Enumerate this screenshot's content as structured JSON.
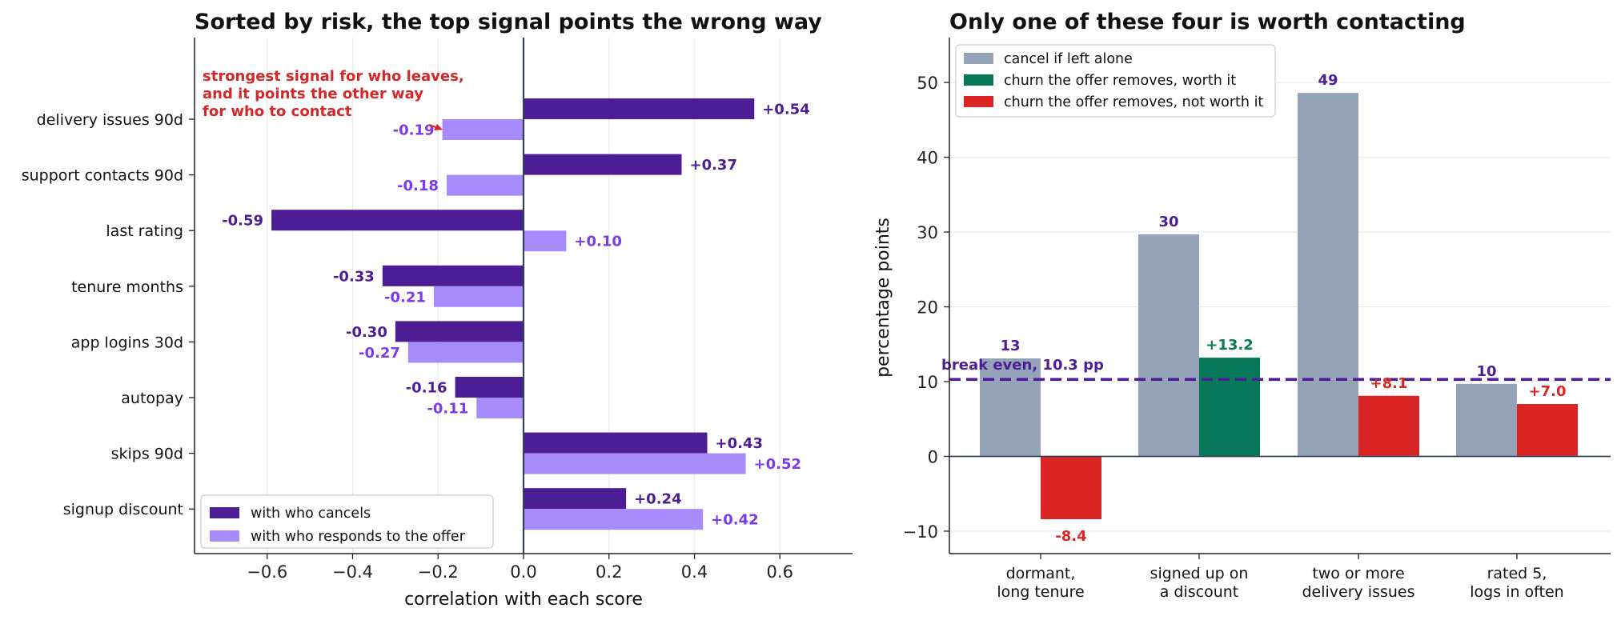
{
  "chart_data": [
    {
      "type": "bar",
      "orientation": "horizontal",
      "title": "Sorted by risk, the top signal points the wrong way",
      "xlabel": "correlation with each score",
      "ylabel": "",
      "xlim": [
        -0.77,
        0.77
      ],
      "xticks": [
        "−0.6",
        "−0.4",
        "−0.2",
        "0.0",
        "0.2",
        "0.4",
        "0.6"
      ],
      "grid": "vertical",
      "legend_position": "bottom-left",
      "categories": [
        "delivery issues 90d",
        "support contacts 90d",
        "last rating",
        "tenure months",
        "app logins 30d",
        "autopay",
        "skips 90d",
        "signup discount"
      ],
      "series": [
        {
          "name": "with who cancels",
          "color": "#4c1d95",
          "values": [
            0.54,
            0.37,
            -0.59,
            -0.33,
            -0.3,
            -0.16,
            0.43,
            0.24
          ],
          "labels": [
            "+0.54",
            "+0.37",
            "-0.59",
            "-0.33",
            "-0.30",
            "-0.16",
            "+0.43",
            "+0.24"
          ]
        },
        {
          "name": "with who responds to the offer",
          "color": "#a78bfa",
          "values": [
            -0.19,
            -0.18,
            0.1,
            -0.21,
            -0.27,
            -0.11,
            0.52,
            0.42
          ],
          "labels": [
            "-0.19",
            "-0.18",
            "+0.10",
            "-0.21",
            "-0.27",
            "-0.11",
            "+0.52",
            "+0.42"
          ]
        }
      ],
      "annotation": {
        "lines": [
          "strongest signal for who leaves,",
          "and it points the other way",
          "for who to contact"
        ],
        "color": "#d62728"
      }
    },
    {
      "type": "bar",
      "title": "Only one of these four is worth contacting",
      "xlabel": "",
      "ylabel": "percentage points",
      "ylim": [
        -13,
        56
      ],
      "yticks": [
        "−10",
        "0",
        "10",
        "20",
        "30",
        "40",
        "50"
      ],
      "grid": "horizontal",
      "legend_position": "top-left",
      "categories": [
        [
          "dormant,",
          "long tenure"
        ],
        [
          "signed up on",
          "a discount"
        ],
        [
          "two or more",
          "delivery issues"
        ],
        [
          "rated 5,",
          "logs in often"
        ]
      ],
      "series": [
        {
          "name": "cancel if left alone",
          "color": "#94a3b8",
          "values": [
            13.1,
            29.7,
            48.6,
            9.7
          ],
          "labels": [
            "13",
            "30",
            "49",
            "10"
          ],
          "label_color": "#4c1d95"
        },
        {
          "name": "churn the offer removes",
          "values": [
            -8.4,
            13.2,
            8.1,
            7.0
          ],
          "labels": [
            "-8.4",
            "+13.2",
            "+8.1",
            "+7.0"
          ],
          "colors": [
            "#dc2626",
            "#047857",
            "#dc2626",
            "#dc2626"
          ]
        }
      ],
      "legend": [
        {
          "name": "cancel if left alone",
          "color": "#94a3b8"
        },
        {
          "name": "churn the offer removes, worth it",
          "color": "#047857"
        },
        {
          "name": "churn the offer removes, not worth it",
          "color": "#dc2626"
        }
      ],
      "reference_line": {
        "value": 10.3,
        "label": "break even, 10.3 pp",
        "color": "#4c1d95"
      }
    }
  ]
}
